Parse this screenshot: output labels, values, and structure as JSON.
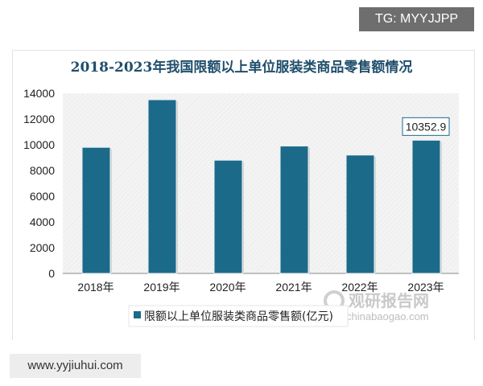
{
  "header_tag": "TG: MYYJJPP",
  "footer_site": "www.yyjiuhui.com",
  "watermark": {
    "name": "观研报告网",
    "url": "chinabaogao.com"
  },
  "chart_data": {
    "type": "bar",
    "title": "2018-2023年我国限额以上单位服装类商品零售额情况",
    "categories": [
      "2018年",
      "2019年",
      "2020年",
      "2021年",
      "2022年",
      "2023年"
    ],
    "series": [
      {
        "name": "限额以上单位服装类商品零售额(亿元)",
        "values": [
          9800,
          13500,
          8800,
          9900,
          9200,
          10352.9
        ],
        "color": "#1c6a8a"
      }
    ],
    "data_labels": [
      {
        "category": "2023年",
        "text": "10352.9"
      }
    ],
    "ylim": [
      0,
      14000
    ],
    "yticks": [
      "0",
      "2000",
      "4000",
      "6000",
      "8000",
      "10000",
      "12000",
      "14000"
    ],
    "xlabel": "",
    "ylabel": "",
    "grid": false,
    "legend_position": "bottom"
  }
}
